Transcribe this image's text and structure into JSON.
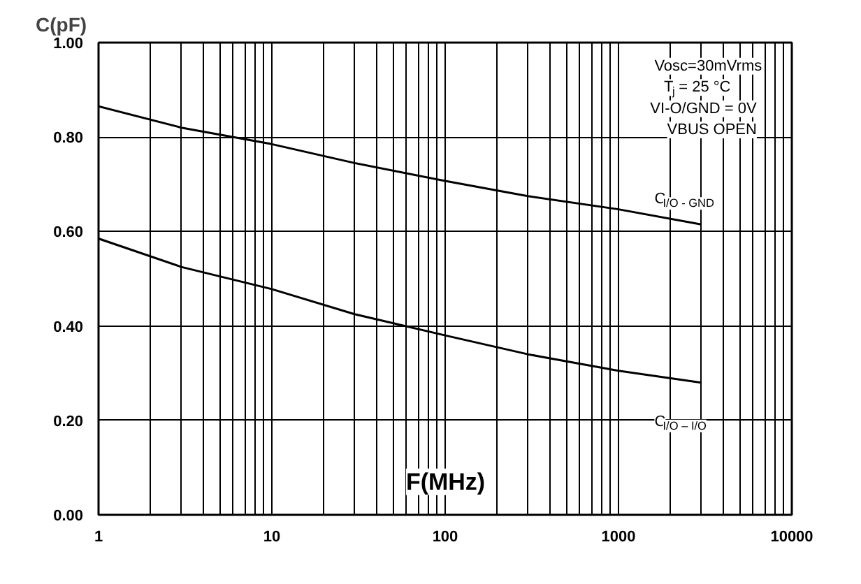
{
  "chart_data": {
    "type": "line",
    "ylabel": "C(pF)",
    "xlabel": "F(MHz)",
    "log": "x",
    "x": [
      1,
      3,
      10,
      30,
      100,
      300,
      1000,
      3000
    ],
    "series": [
      {
        "name": "C$_{I/O - GND}$",
        "color": "#000000",
        "values": [
          0.865,
          0.82,
          0.785,
          0.745,
          0.707,
          0.675,
          0.647,
          0.615
        ]
      },
      {
        "name": "C$_{I/O – I/O}$",
        "color": "#000000",
        "values": [
          0.585,
          0.525,
          0.478,
          0.425,
          0.38,
          0.34,
          0.305,
          0.28
        ]
      }
    ],
    "xlim": [
      1,
      10000
    ],
    "xticks": [
      1,
      10,
      100,
      1000,
      10000
    ],
    "ylim": [
      0,
      1
    ],
    "yticks": [
      {
        "value": 0,
        "label": "0.00"
      },
      {
        "value": 0.2,
        "label": "0.20"
      },
      {
        "value": 0.4,
        "label": "0.40"
      },
      {
        "value": 0.6,
        "label": "0.60"
      },
      {
        "value": 0.8,
        "label": "0.80"
      },
      {
        "value": 1,
        "label": "1.00"
      }
    ],
    "grid": true,
    "annotations": [
      "Vosc=30mVrms",
      "T$_{j}$ = 25 °C",
      "VI-O/GND = 0V",
      "VBUS OPEN"
    ]
  }
}
